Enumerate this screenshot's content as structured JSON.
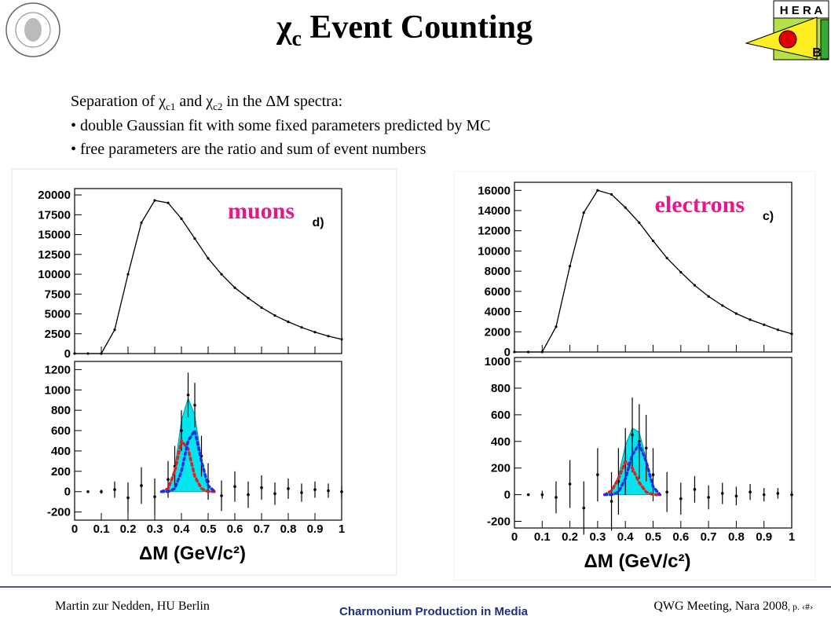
{
  "title": [
    "χ",
    "c",
    " Event Counting"
  ],
  "logo_right": {
    "top": "H E R A",
    "bottom": "B"
  },
  "intro": {
    "line1": [
      "Separation of χ",
      "c1",
      " and χ",
      "c2",
      " in the ΔM spectra:"
    ],
    "bullets": [
      "• double Gaussian fit with some fixed parameters predicted by MC",
      "• free parameters are the ratio and sum of event numbers"
    ]
  },
  "footer": {
    "left": "Martin zur Nedden, HU Berlin",
    "center": "Charmonium Production in Media",
    "right": [
      "QWG Meeting, Nara 2008",
      ", p. ‹#›"
    ]
  },
  "chart_data": [
    {
      "type": "line",
      "annotation": "muons",
      "annotation_color": "#e8168c",
      "label": "d)",
      "x": [
        0,
        0.05,
        0.1,
        0.15,
        0.2,
        0.25,
        0.3,
        0.35,
        0.4,
        0.45,
        0.5,
        0.55,
        0.6,
        0.65,
        0.7,
        0.75,
        0.8,
        0.85,
        0.9,
        0.95,
        1.0
      ],
      "series": [
        {
          "color": "#000000",
          "values": [
            0,
            0,
            0,
            3000,
            10000,
            16500,
            19300,
            19000,
            17000,
            14500,
            12000,
            10000,
            8300,
            7000,
            5800,
            4800,
            4000,
            3300,
            2700,
            2200,
            1800
          ]
        }
      ],
      "xlim": [
        0,
        1
      ],
      "xticks": [
        0,
        0.1,
        0.2,
        0.3,
        0.4,
        0.5,
        0.6,
        0.7,
        0.8,
        0.9,
        1
      ],
      "ylim": [
        0,
        20800
      ],
      "yticks": [
        0,
        2500,
        5000,
        7500,
        10000,
        12500,
        15000,
        17500,
        20000
      ]
    },
    {
      "type": "scatter",
      "xlabel": "ΔM (GeV/c²)",
      "x": [
        0.05,
        0.1,
        0.15,
        0.2,
        0.25,
        0.3,
        0.35,
        0.375,
        0.4,
        0.425,
        0.45,
        0.475,
        0.5,
        0.55,
        0.6,
        0.65,
        0.7,
        0.75,
        0.8,
        0.85,
        0.9,
        0.95,
        1.0
      ],
      "fit_x": [
        0.325,
        0.35,
        0.375,
        0.4,
        0.425,
        0.45,
        0.475,
        0.5,
        0.525
      ],
      "series": [
        {
          "color": "#000000",
          "style": "points",
          "values": [
            0,
            0,
            20,
            -60,
            60,
            -50,
            120,
            250,
            600,
            950,
            850,
            350,
            100,
            -40,
            50,
            -30,
            40,
            -20,
            30,
            -10,
            20,
            10,
            0
          ],
          "errors": [
            5,
            20,
            80,
            150,
            180,
            180,
            180,
            200,
            200,
            220,
            220,
            200,
            180,
            150,
            150,
            130,
            120,
            110,
            100,
            90,
            80,
            70,
            60
          ]
        },
        {
          "color": "#00e5ee",
          "style": "area",
          "values": [
            0,
            30,
            230,
            700,
            920,
            750,
            330,
            60,
            0
          ]
        },
        {
          "color": "#e02020",
          "style": "dotted",
          "values": [
            0,
            30,
            200,
            500,
            420,
            150,
            30,
            0,
            0
          ]
        },
        {
          "color": "#2030e0",
          "style": "dotted",
          "values": [
            0,
            0,
            30,
            200,
            500,
            600,
            300,
            60,
            0
          ]
        }
      ],
      "xlim": [
        0,
        1
      ],
      "xticks": [
        0,
        0.1,
        0.2,
        0.3,
        0.4,
        0.5,
        0.6,
        0.7,
        0.8,
        0.9,
        1
      ],
      "ylim": [
        -280,
        1280
      ],
      "yticks": [
        -200,
        0,
        200,
        400,
        600,
        800,
        1000,
        1200
      ]
    },
    {
      "type": "line",
      "annotation": "electrons",
      "annotation_color": "#e8168c",
      "label": "c)",
      "x": [
        0,
        0.05,
        0.1,
        0.15,
        0.2,
        0.25,
        0.3,
        0.35,
        0.4,
        0.45,
        0.5,
        0.55,
        0.6,
        0.65,
        0.7,
        0.75,
        0.8,
        0.85,
        0.9,
        0.95,
        1.0
      ],
      "series": [
        {
          "color": "#000000",
          "values": [
            0,
            0,
            0,
            2500,
            8500,
            13800,
            16000,
            15600,
            14300,
            12800,
            11000,
            9300,
            7900,
            6600,
            5500,
            4600,
            3800,
            3200,
            2700,
            2200,
            1800
          ]
        }
      ],
      "xlim": [
        0,
        1
      ],
      "xticks": [
        0,
        0.1,
        0.2,
        0.3,
        0.4,
        0.5,
        0.6,
        0.7,
        0.8,
        0.9,
        1
      ],
      "ylim": [
        0,
        16800
      ],
      "yticks": [
        0,
        2000,
        4000,
        6000,
        8000,
        10000,
        12000,
        14000,
        16000
      ]
    },
    {
      "type": "scatter",
      "xlabel": "ΔM (GeV/c²)",
      "x": [
        0.05,
        0.1,
        0.15,
        0.2,
        0.25,
        0.3,
        0.35,
        0.375,
        0.4,
        0.425,
        0.45,
        0.475,
        0.5,
        0.55,
        0.6,
        0.65,
        0.7,
        0.75,
        0.8,
        0.85,
        0.9,
        0.95,
        1.0
      ],
      "fit_x": [
        0.325,
        0.35,
        0.375,
        0.4,
        0.425,
        0.45,
        0.475,
        0.5,
        0.525
      ],
      "series": [
        {
          "color": "#000000",
          "style": "points",
          "values": [
            0,
            0,
            -20,
            80,
            -100,
            150,
            -50,
            100,
            250,
            450,
            400,
            350,
            150,
            20,
            -30,
            40,
            -20,
            10,
            -10,
            20,
            0,
            10,
            0
          ],
          "errors": [
            5,
            30,
            120,
            180,
            200,
            200,
            220,
            250,
            250,
            280,
            280,
            250,
            200,
            150,
            120,
            100,
            90,
            80,
            70,
            60,
            50,
            40,
            30
          ]
        },
        {
          "color": "#00e5ee",
          "style": "area",
          "values": [
            0,
            30,
            140,
            370,
            500,
            470,
            270,
            60,
            0
          ]
        },
        {
          "color": "#e02020",
          "style": "dotted",
          "values": [
            0,
            30,
            120,
            250,
            200,
            90,
            20,
            0,
            0
          ]
        },
        {
          "color": "#2030e0",
          "style": "dotted",
          "values": [
            0,
            0,
            20,
            120,
            300,
            380,
            250,
            60,
            0
          ]
        }
      ],
      "xlim": [
        0,
        1
      ],
      "xticks": [
        0,
        0.1,
        0.2,
        0.3,
        0.4,
        0.5,
        0.6,
        0.7,
        0.8,
        0.9,
        1
      ],
      "ylim": [
        -250,
        1030
      ],
      "yticks": [
        -200,
        0,
        200,
        400,
        600,
        800,
        1000
      ]
    }
  ]
}
